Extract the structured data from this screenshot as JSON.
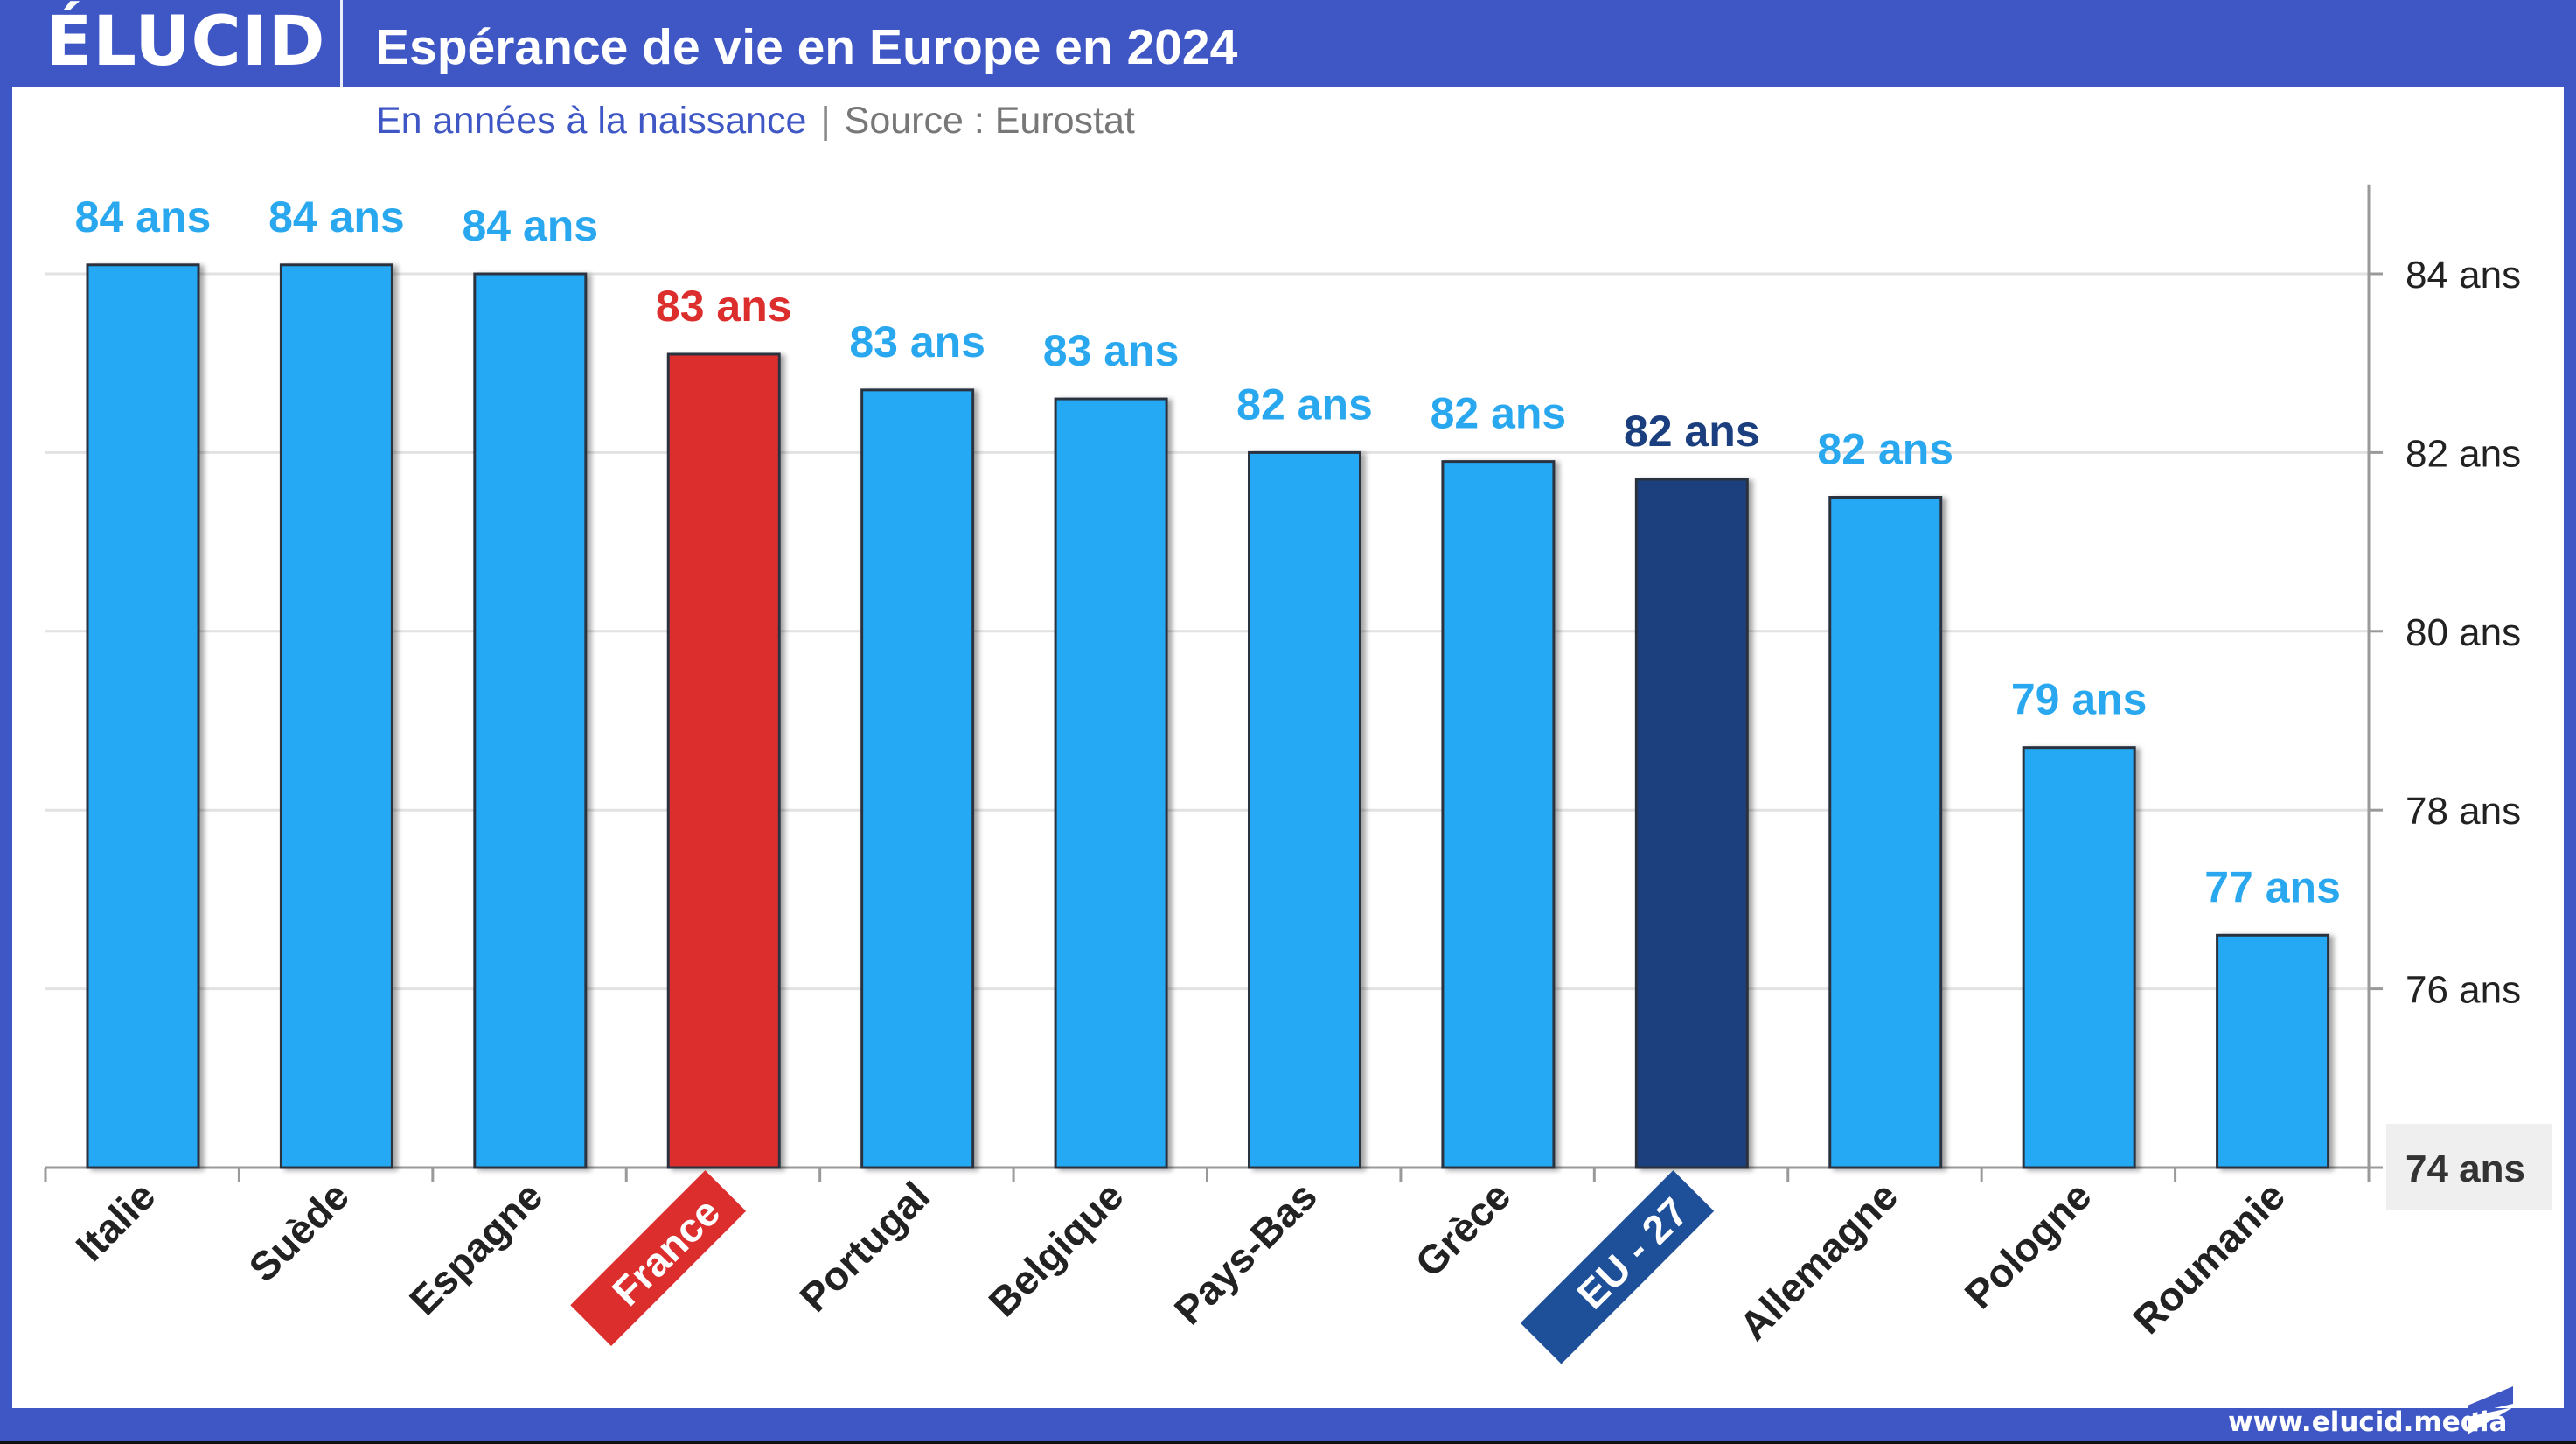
{
  "header": {
    "logo": "ÉLUCID",
    "title": "Espérance de vie en Europe en 2024",
    "subtitle_measure": "En années à la naissance",
    "subtitle_separator": "|",
    "subtitle_source": "Source : Eurostat"
  },
  "footer": {
    "url": "www.elucid.media"
  },
  "colors": {
    "brand": "#3f57c5",
    "bar_default": "#25a9f4",
    "bar_france": "#dd2e2e",
    "bar_eu": "#1b3f7e",
    "label_default": "#29a8ef",
    "label_france": "#dd2e2e",
    "label_eu": "#1b3f7e",
    "badge_eu": "#1e4f99",
    "axis_text": "#222222"
  },
  "chart_data": {
    "type": "bar",
    "title": "Espérance de vie en Europe en 2024",
    "subtitle": "En années à la naissance | Source : Eurostat",
    "xlabel": "",
    "ylabel": "",
    "y_axis_position": "right",
    "ylim": [
      74,
      85
    ],
    "yticks": [
      74,
      76,
      78,
      80,
      82,
      84
    ],
    "ytick_labels": [
      "74 ans",
      "76 ans",
      "78 ans",
      "80 ans",
      "82 ans",
      "84 ans"
    ],
    "grid": true,
    "categories": [
      "Italie",
      "Suède",
      "Espagne",
      "France",
      "Portugal",
      "Belgique",
      "Pays-Bas",
      "Grèce",
      "EU - 27",
      "Allemagne",
      "Pologne",
      "Roumanie"
    ],
    "values": [
      84.1,
      84.1,
      84.0,
      83.1,
      82.7,
      82.6,
      82.0,
      81.9,
      81.7,
      81.5,
      78.7,
      76.6
    ],
    "data_labels": [
      "84 ans",
      "84 ans",
      "84 ans",
      "83 ans",
      "83 ans",
      "83 ans",
      "82 ans",
      "82 ans",
      "82 ans",
      "82 ans",
      "79 ans",
      "77 ans"
    ],
    "highlight": {
      "France": "france",
      "EU - 27": "eu"
    }
  }
}
